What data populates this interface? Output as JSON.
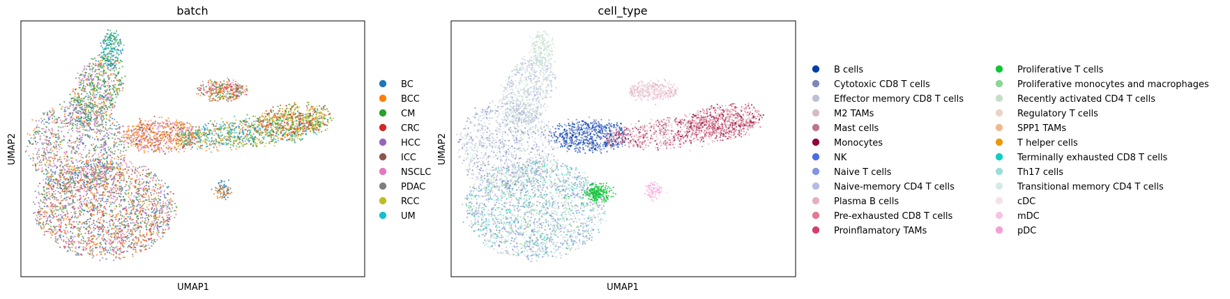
{
  "chart_data": [
    {
      "type": "scatter",
      "title": "batch",
      "xlabel": "UMAP1",
      "ylabel": "UMAP2",
      "grid": false,
      "legend_position": "right",
      "legend": [
        {
          "label": "BC",
          "color": "#1f77b4"
        },
        {
          "label": "BCC",
          "color": "#ff7f0e"
        },
        {
          "label": "CM",
          "color": "#2ca02c"
        },
        {
          "label": "CRC",
          "color": "#d62728"
        },
        {
          "label": "HCC",
          "color": "#9467bd"
        },
        {
          "label": "ICC",
          "color": "#8c564b"
        },
        {
          "label": "NSCLC",
          "color": "#e377c2"
        },
        {
          "label": "PDAC",
          "color": "#7f7f7f"
        },
        {
          "label": "RCC",
          "color": "#bcbd22"
        },
        {
          "label": "UM",
          "color": "#17becf"
        }
      ]
    },
    {
      "type": "scatter",
      "title": "cell_type",
      "xlabel": "UMAP1",
      "ylabel": "UMAP2",
      "grid": false,
      "legend_position": "right",
      "legend": [
        {
          "label": "B cells",
          "color": "#023fa5"
        },
        {
          "label": "Cytotoxic CD8 T cells",
          "color": "#7d87b9"
        },
        {
          "label": "Effector memory CD8 T cells",
          "color": "#bec1d4"
        },
        {
          "label": "M2 TAMs",
          "color": "#d6bcc0"
        },
        {
          "label": "Mast cells",
          "color": "#bb7784"
        },
        {
          "label": "Monocytes",
          "color": "#8e063b"
        },
        {
          "label": "NK",
          "color": "#4a6fe3"
        },
        {
          "label": "Naive T cells",
          "color": "#8595e1"
        },
        {
          "label": "Naive-memory CD4 T cells",
          "color": "#b5bbe3"
        },
        {
          "label": "Plasma B cells",
          "color": "#e6afb9"
        },
        {
          "label": "Pre-exhausted CD8 T cells",
          "color": "#e07b91"
        },
        {
          "label": "Proinflamatory TAMs",
          "color": "#d33f6a"
        },
        {
          "label": "Proliferative T cells",
          "color": "#11c638"
        },
        {
          "label": "Proliferative monocytes and macrophages",
          "color": "#8dd593"
        },
        {
          "label": "Recently activated CD4 T cells",
          "color": "#c6dec7"
        },
        {
          "label": "Regulatory T cells",
          "color": "#ead3c6"
        },
        {
          "label": "SPP1 TAMs",
          "color": "#f0b98d"
        },
        {
          "label": "T helper cells",
          "color": "#ef9708"
        },
        {
          "label": "Terminally exhausted CD8 T cells",
          "color": "#0fcfc0"
        },
        {
          "label": "Th17 cells",
          "color": "#9cded6"
        },
        {
          "label": "Transitional memory CD4 T cells",
          "color": "#d5eae7"
        },
        {
          "label": "cDC",
          "color": "#f3e1eb"
        },
        {
          "label": "mDC",
          "color": "#f6c4e1"
        },
        {
          "label": "pDC",
          "color": "#f79cd4"
        }
      ]
    }
  ]
}
